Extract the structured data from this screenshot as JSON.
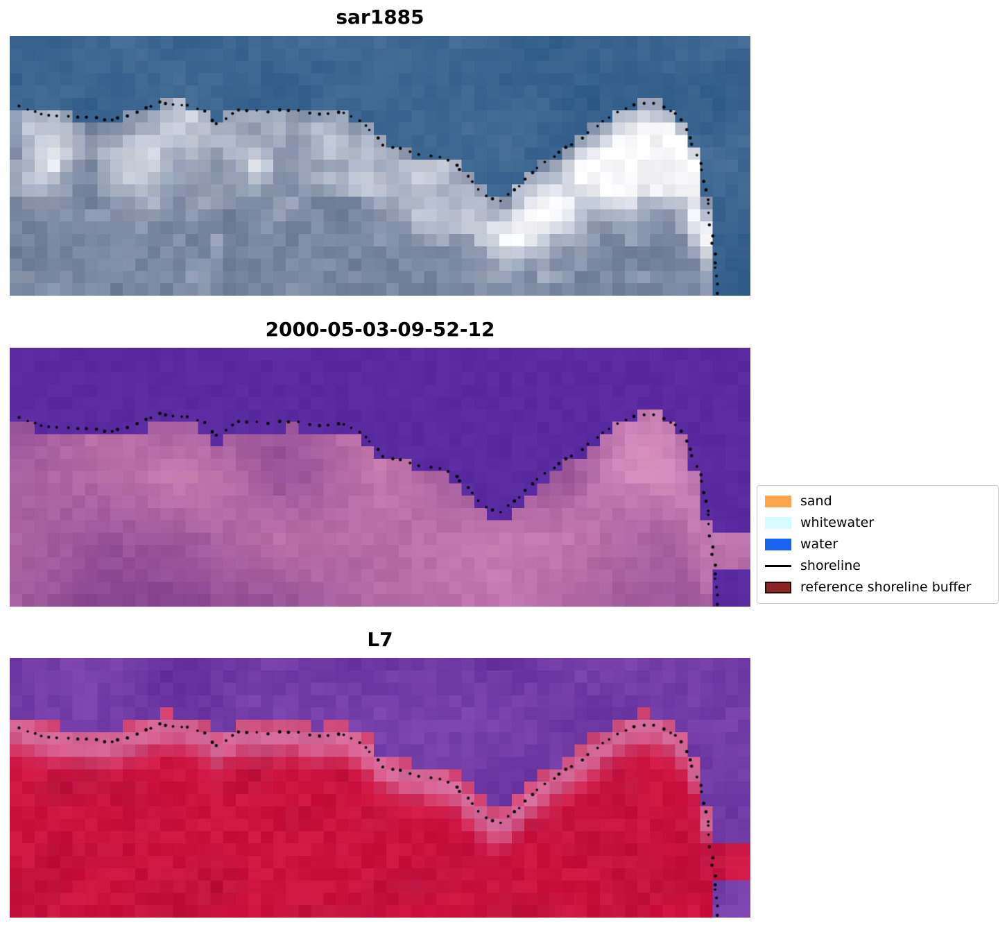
{
  "figure": {
    "background": "#ffffff",
    "panels": [
      {
        "key": "sar1885",
        "title": "sar1885"
      },
      {
        "key": "classified",
        "title": "2000-05-03-09-52-12"
      },
      {
        "key": "l7",
        "title": "L7"
      }
    ],
    "legend": {
      "items": [
        {
          "label": "sand",
          "swatch": "patch",
          "fill": "#ffa54c"
        },
        {
          "label": "whitewater",
          "swatch": "patch",
          "fill": "#d6fbfd"
        },
        {
          "label": "water",
          "swatch": "patch",
          "fill": "#1a63f0"
        },
        {
          "label": "shoreline",
          "swatch": "line",
          "fill": "#000000"
        },
        {
          "label": "reference shoreline buffer",
          "swatch": "patch",
          "fill": "#8b2525",
          "edge": "#260a0a"
        }
      ]
    }
  },
  "chart_data": {
    "type": "heatmap",
    "panel_titles": [
      "sar1885",
      "2000-05-03-09-52-12",
      "L7"
    ],
    "legend_entries": [
      "sand",
      "whitewater",
      "water",
      "shoreline",
      "reference shoreline buffer"
    ],
    "shoreline_color": "#000000",
    "shoreline_points": [
      [
        0.01,
        0.262
      ],
      [
        0.045,
        0.3
      ],
      [
        0.09,
        0.312
      ],
      [
        0.135,
        0.322
      ],
      [
        0.168,
        0.3
      ],
      [
        0.2,
        0.258
      ],
      [
        0.238,
        0.262
      ],
      [
        0.262,
        0.29
      ],
      [
        0.278,
        0.338
      ],
      [
        0.31,
        0.285
      ],
      [
        0.348,
        0.292
      ],
      [
        0.38,
        0.282
      ],
      [
        0.415,
        0.308
      ],
      [
        0.445,
        0.288
      ],
      [
        0.475,
        0.33
      ],
      [
        0.505,
        0.418
      ],
      [
        0.54,
        0.448
      ],
      [
        0.572,
        0.462
      ],
      [
        0.6,
        0.488
      ],
      [
        0.623,
        0.552
      ],
      [
        0.642,
        0.612
      ],
      [
        0.662,
        0.638
      ],
      [
        0.685,
        0.588
      ],
      [
        0.708,
        0.515
      ],
      [
        0.736,
        0.458
      ],
      [
        0.764,
        0.408
      ],
      [
        0.787,
        0.355
      ],
      [
        0.811,
        0.308
      ],
      [
        0.834,
        0.272
      ],
      [
        0.858,
        0.252
      ],
      [
        0.881,
        0.265
      ],
      [
        0.9,
        0.3
      ],
      [
        0.914,
        0.356
      ],
      [
        0.923,
        0.42
      ],
      [
        0.931,
        0.478
      ],
      [
        0.937,
        0.545
      ],
      [
        0.941,
        0.615
      ],
      [
        0.944,
        0.69
      ],
      [
        0.948,
        0.762
      ],
      [
        0.951,
        0.835
      ],
      [
        0.954,
        0.915
      ],
      [
        0.957,
        1.0
      ],
      [
        0.959,
        1.1
      ]
    ],
    "palettes": {
      "sar1885": {
        "water": "#2a5784",
        "water_light": "#547aa0",
        "land": "#76849f",
        "bright": "#f8f8fa"
      },
      "classified": {
        "water": "#5a2aa0",
        "land_dark": "#82408e",
        "land_light": "#cc80b2",
        "hot": "#dc96c4"
      },
      "l7": {
        "water": "#5e2b96",
        "water_light": "#8a50bb",
        "land": "#ce1240",
        "land_dark": "#a90f36",
        "pink": "#d572a2"
      }
    }
  }
}
